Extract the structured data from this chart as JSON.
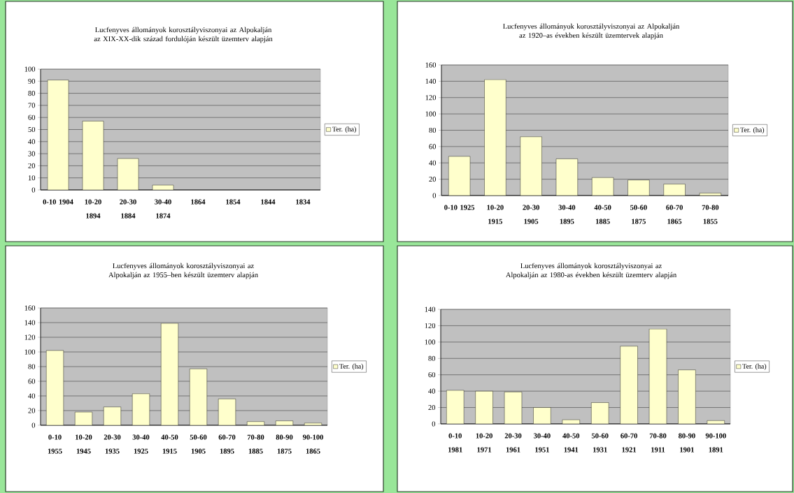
{
  "chart_data": [
    {
      "type": "bar",
      "title": "Lucfenyves állományok korosztályviszonyai az Alpokalján az XIX-XX-dik század fordulóján készült üzemterv alapján",
      "categories": [
        "0-10 1904",
        "10-20 1894",
        "20-30 1884",
        "30-40 1874",
        "1864",
        "1854",
        "1844",
        "1834"
      ],
      "series": [
        {
          "name": "Ter. (ha)",
          "color": "#ffffcc",
          "values": [
            91,
            57,
            26,
            4,
            null,
            null,
            null,
            null
          ]
        }
      ],
      "ylim": [
        0,
        100
      ],
      "yticks": [
        0,
        10,
        20,
        30,
        40,
        50,
        60,
        70,
        80,
        90,
        100
      ],
      "grid": "y",
      "legend": "right"
    },
    {
      "type": "bar",
      "title": "Lucfenyves állományok korosztályviszonyai az Alpokalján az 1920–as években készült üzemtervek alapján",
      "categories": [
        "0-10 1925",
        "10-20 1915",
        "20-30 1905",
        "30-40 1895",
        "40-50 1885",
        "50-60 1875",
        "60-70 1865",
        "70-80 1855"
      ],
      "series": [
        {
          "name": "Ter. (ha)",
          "color": "#ffffcc",
          "values": [
            48,
            142,
            72,
            45,
            22,
            19,
            14,
            3
          ]
        }
      ],
      "ylim": [
        0,
        160
      ],
      "yticks": [
        0,
        20,
        40,
        60,
        80,
        100,
        120,
        140,
        160
      ],
      "grid": "y",
      "legend": "right"
    },
    {
      "type": "bar",
      "title": "Lucfenyves állományok korosztályviszonyai az Alpokalján az 1955–ben készült üzemterv alapján",
      "categories": [
        "0-10 1955",
        "10-20 1945",
        "20-30 1935",
        "30-40 1925",
        "40-50 1915",
        "50-60 1905",
        "60-70 1895",
        "70-80 1885",
        "80-90 1875",
        "90-100 1865"
      ],
      "series": [
        {
          "name": "Ter. (ha)",
          "color": "#ffffcc",
          "values": [
            102,
            18,
            25,
            43,
            139,
            77,
            36,
            5,
            6,
            3
          ]
        }
      ],
      "ylim": [
        0,
        160
      ],
      "yticks": [
        0,
        20,
        40,
        60,
        80,
        100,
        120,
        140,
        160
      ],
      "grid": "y",
      "legend": "right"
    },
    {
      "type": "bar",
      "title": "Lucfenyves állományok korosztályviszonyai az Alpokalján az 1980-as években készült üzemterv alapján",
      "categories": [
        "0-10 1981",
        "10-20 1971",
        "20-30 1961",
        "30-40 1951",
        "40-50 1941",
        "50-60 1931",
        "60-70 1921",
        "70-80 1911",
        "80-90 1901",
        "90-100 1891"
      ],
      "series": [
        {
          "name": "Ter. (ha)",
          "color": "#ffffcc",
          "values": [
            41,
            40,
            39,
            20,
            5,
            26,
            95,
            116,
            66,
            4
          ]
        }
      ],
      "ylim": [
        0,
        140
      ],
      "yticks": [
        0,
        20,
        40,
        60,
        80,
        100,
        120,
        140
      ],
      "grid": "y",
      "legend": "right"
    }
  ]
}
